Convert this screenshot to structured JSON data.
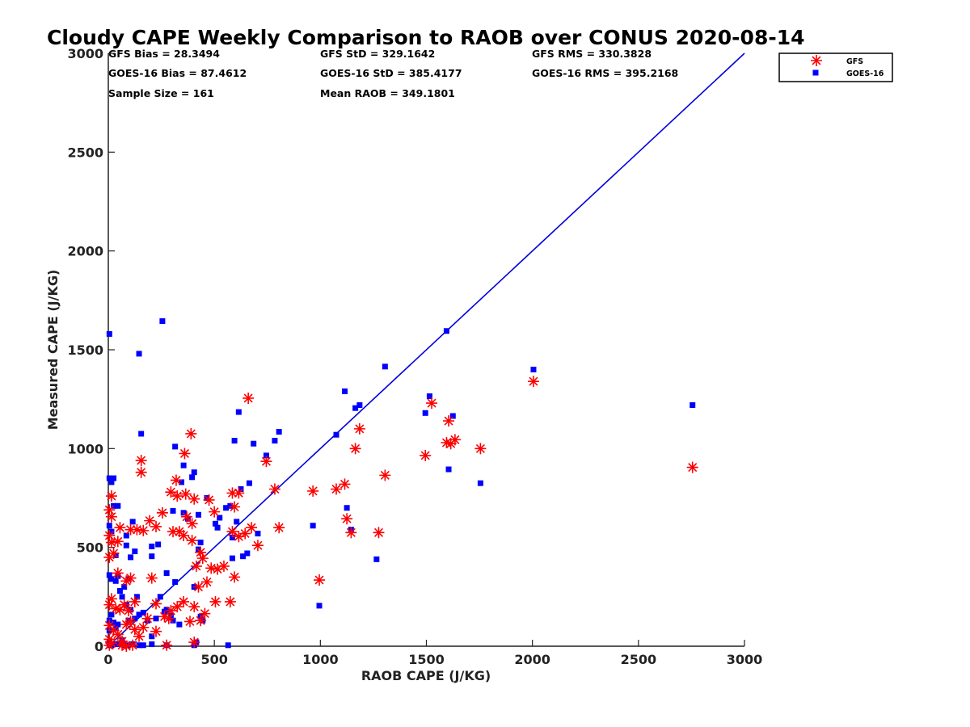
{
  "chart_data": {
    "type": "scatter",
    "title": "Cloudy CAPE Weekly Comparison to RAOB over CONUS 2020-08-14",
    "xlabel": "RAOB CAPE (J/KG)",
    "ylabel": "Measured CAPE (J/KG)",
    "xlim": [
      0,
      3000
    ],
    "ylim": [
      0,
      3000
    ],
    "xticks": [
      0,
      500,
      1000,
      1500,
      2000,
      2500,
      3000
    ],
    "yticks": [
      0,
      500,
      1000,
      1500,
      2000,
      2500,
      3000
    ],
    "grid": false,
    "legend_position": "top-right",
    "stats": [
      "GFS Bias = 28.3494",
      "GFS StD = 329.1642",
      "GFS RMS = 330.3828",
      "GOES-16 Bias = 87.4612",
      "GOES-16 StD = 385.4177",
      "GOES-16 RMS = 395.2168",
      "Sample Size = 161",
      "Mean RAOB = 349.1801"
    ],
    "reference_line": {
      "from": [
        0,
        0
      ],
      "to": [
        3000,
        3000
      ],
      "color": "#0000dd"
    },
    "series": [
      {
        "name": "GFS",
        "marker": "asterisk",
        "color": "#ff0000",
        "points": [
          [
            660,
            1255
          ],
          [
            390,
            1075
          ],
          [
            360,
            975
          ],
          [
            320,
            840
          ],
          [
            155,
            940
          ],
          [
            155,
            880
          ],
          [
            15,
            760
          ],
          [
            5,
            690
          ],
          [
            15,
            655
          ],
          [
            5,
            560
          ],
          [
            15,
            525
          ],
          [
            45,
            530
          ],
          [
            25,
            470
          ],
          [
            5,
            450
          ],
          [
            55,
            600
          ],
          [
            45,
            370
          ],
          [
            85,
            330
          ],
          [
            105,
            590
          ],
          [
            135,
            590
          ],
          [
            165,
            585
          ],
          [
            195,
            635
          ],
          [
            225,
            605
          ],
          [
            255,
            675
          ],
          [
            295,
            780
          ],
          [
            325,
            760
          ],
          [
            365,
            770
          ],
          [
            405,
            745
          ],
          [
            475,
            740
          ],
          [
            500,
            680
          ],
          [
            370,
            655
          ],
          [
            395,
            620
          ],
          [
            335,
            580
          ],
          [
            305,
            580
          ],
          [
            355,
            560
          ],
          [
            395,
            535
          ],
          [
            435,
            475
          ],
          [
            445,
            445
          ],
          [
            415,
            405
          ],
          [
            465,
            325
          ],
          [
            485,
            395
          ],
          [
            515,
            390
          ],
          [
            545,
            405
          ],
          [
            585,
            775
          ],
          [
            615,
            775
          ],
          [
            595,
            705
          ],
          [
            585,
            580
          ],
          [
            615,
            555
          ],
          [
            645,
            570
          ],
          [
            675,
            600
          ],
          [
            705,
            510
          ],
          [
            745,
            935
          ],
          [
            785,
            795
          ],
          [
            805,
            600
          ],
          [
            595,
            350
          ],
          [
            575,
            225
          ],
          [
            505,
            225
          ],
          [
            425,
            300
          ],
          [
            405,
            200
          ],
          [
            385,
            125
          ],
          [
            435,
            130
          ],
          [
            455,
            165
          ],
          [
            405,
            20
          ],
          [
            295,
            180
          ],
          [
            285,
            140
          ],
          [
            325,
            200
          ],
          [
            355,
            225
          ],
          [
            265,
            150
          ],
          [
            225,
            215
          ],
          [
            205,
            345
          ],
          [
            185,
            140
          ],
          [
            165,
            95
          ],
          [
            225,
            75
          ],
          [
            145,
            50
          ],
          [
            125,
            85
          ],
          [
            125,
            225
          ],
          [
            105,
            345
          ],
          [
            95,
            180
          ],
          [
            75,
            210
          ],
          [
            55,
            185
          ],
          [
            35,
            190
          ],
          [
            15,
            240
          ],
          [
            5,
            210
          ],
          [
            5,
            105
          ],
          [
            5,
            35
          ],
          [
            15,
            15
          ],
          [
            25,
            80
          ],
          [
            45,
            60
          ],
          [
            65,
            25
          ],
          [
            85,
            110
          ],
          [
            105,
            125
          ],
          [
            85,
            0
          ],
          [
            115,
            5
          ],
          [
            65,
            5
          ],
          [
            275,
            5
          ],
          [
            5,
            5
          ],
          [
            965,
            785
          ],
          [
            995,
            335
          ],
          [
            1075,
            795
          ],
          [
            1115,
            820
          ],
          [
            1125,
            645
          ],
          [
            1145,
            575
          ],
          [
            1165,
            1000
          ],
          [
            1185,
            1100
          ],
          [
            1275,
            575
          ],
          [
            1305,
            865
          ],
          [
            1495,
            965
          ],
          [
            1525,
            1230
          ],
          [
            1595,
            1030
          ],
          [
            1605,
            1140
          ],
          [
            1615,
            1025
          ],
          [
            1635,
            1045
          ],
          [
            1755,
            1000
          ],
          [
            2005,
            1340
          ],
          [
            2755,
            905
          ]
        ]
      },
      {
        "name": "GOES-16",
        "marker": "square",
        "color": "#0000ff",
        "points": [
          [
            5,
            1580
          ],
          [
            255,
            1645
          ],
          [
            145,
            1480
          ],
          [
            155,
            1075
          ],
          [
            315,
            1010
          ],
          [
            305,
            685
          ],
          [
            355,
            915
          ],
          [
            345,
            830
          ],
          [
            395,
            855
          ],
          [
            405,
            880
          ],
          [
            425,
            665
          ],
          [
            375,
            645
          ],
          [
            355,
            675
          ],
          [
            5,
            850
          ],
          [
            25,
            850
          ],
          [
            15,
            830
          ],
          [
            25,
            710
          ],
          [
            45,
            710
          ],
          [
            5,
            610
          ],
          [
            15,
            580
          ],
          [
            35,
            460
          ],
          [
            5,
            360
          ],
          [
            15,
            340
          ],
          [
            35,
            330
          ],
          [
            45,
            355
          ],
          [
            55,
            280
          ],
          [
            75,
            300
          ],
          [
            95,
            340
          ],
          [
            115,
            630
          ],
          [
            85,
            560
          ],
          [
            85,
            510
          ],
          [
            125,
            480
          ],
          [
            105,
            450
          ],
          [
            205,
            505
          ],
          [
            235,
            515
          ],
          [
            205,
            455
          ],
          [
            275,
            370
          ],
          [
            315,
            325
          ],
          [
            405,
            300
          ],
          [
            425,
            490
          ],
          [
            435,
            525
          ],
          [
            465,
            750
          ],
          [
            505,
            620
          ],
          [
            515,
            600
          ],
          [
            525,
            650
          ],
          [
            555,
            700
          ],
          [
            575,
            710
          ],
          [
            605,
            630
          ],
          [
            585,
            550
          ],
          [
            585,
            445
          ],
          [
            635,
            455
          ],
          [
            655,
            470
          ],
          [
            665,
            825
          ],
          [
            595,
            1040
          ],
          [
            615,
            1185
          ],
          [
            625,
            795
          ],
          [
            685,
            1025
          ],
          [
            705,
            570
          ],
          [
            745,
            965
          ],
          [
            785,
            1040
          ],
          [
            805,
            1085
          ],
          [
            965,
            610
          ],
          [
            995,
            205
          ],
          [
            1075,
            1070
          ],
          [
            1115,
            1290
          ],
          [
            1125,
            700
          ],
          [
            1145,
            590
          ],
          [
            1165,
            1205
          ],
          [
            1185,
            1220
          ],
          [
            1265,
            440
          ],
          [
            1305,
            1415
          ],
          [
            1495,
            1180
          ],
          [
            1515,
            1265
          ],
          [
            1595,
            1595
          ],
          [
            1605,
            895
          ],
          [
            1625,
            1165
          ],
          [
            1755,
            825
          ],
          [
            2005,
            1400
          ],
          [
            2755,
            1220
          ],
          [
            435,
            150
          ],
          [
            445,
            130
          ],
          [
            415,
            20
          ],
          [
            405,
            5
          ],
          [
            335,
            110
          ],
          [
            305,
            130
          ],
          [
            295,
            155
          ],
          [
            275,
            185
          ],
          [
            265,
            175
          ],
          [
            245,
            250
          ],
          [
            225,
            140
          ],
          [
            205,
            50
          ],
          [
            205,
            10
          ],
          [
            185,
            130
          ],
          [
            165,
            170
          ],
          [
            145,
            160
          ],
          [
            135,
            250
          ],
          [
            125,
            140
          ],
          [
            105,
            185
          ],
          [
            95,
            130
          ],
          [
            85,
            210
          ],
          [
            65,
            250
          ],
          [
            45,
            110
          ],
          [
            35,
            90
          ],
          [
            25,
            120
          ],
          [
            15,
            160
          ],
          [
            5,
            130
          ],
          [
            5,
            80
          ],
          [
            5,
            20
          ],
          [
            15,
            5
          ],
          [
            35,
            10
          ],
          [
            55,
            15
          ],
          [
            65,
            30
          ],
          [
            75,
            5
          ],
          [
            95,
            5
          ],
          [
            115,
            10
          ],
          [
            145,
            5
          ],
          [
            165,
            5
          ],
          [
            275,
            5
          ],
          [
            565,
            5
          ],
          [
            5,
            5
          ]
        ]
      }
    ]
  }
}
